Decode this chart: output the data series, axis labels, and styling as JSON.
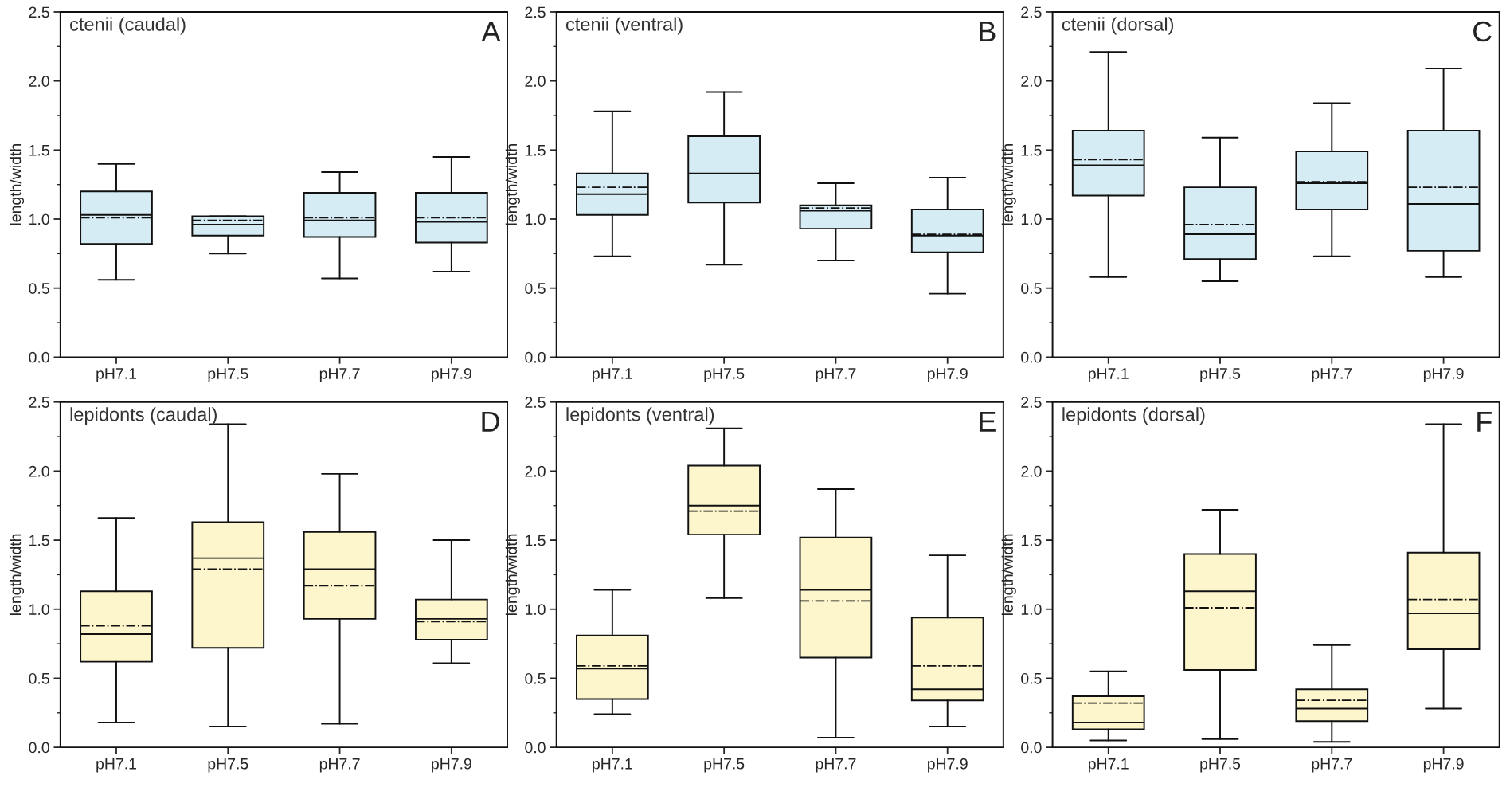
{
  "chart_data": [
    {
      "type": "box",
      "title": "ctenii (caudal)",
      "annotations": [
        "A"
      ],
      "ylabel": "length/width",
      "categories": [
        "pH7.1",
        "pH7.5",
        "pH7.7",
        "pH7.9"
      ],
      "color": "#d6ecf5",
      "ylim": [
        0,
        2.5
      ],
      "yticks": [
        {
          "value": 0,
          "label": "0.0"
        },
        0.5,
        {
          "value": 1,
          "label": "1.0"
        },
        1.5,
        {
          "value": 2,
          "label": "2.0"
        },
        2.5
      ],
      "boxes": [
        {
          "low": 0.56,
          "q1": 0.82,
          "median": 1.03,
          "q3": 1.2,
          "high": 1.4,
          "mean": 1.01
        },
        {
          "low": 0.75,
          "q1": 0.88,
          "median": 0.96,
          "q3": 1.02,
          "high": 1.02,
          "mean": 0.99
        },
        {
          "low": 0.57,
          "q1": 0.87,
          "median": 0.99,
          "q3": 1.19,
          "high": 1.34,
          "mean": 1.01
        },
        {
          "low": 0.62,
          "q1": 0.83,
          "median": 0.98,
          "q3": 1.19,
          "high": 1.45,
          "mean": 1.01
        }
      ]
    },
    {
      "type": "box",
      "title": "ctenii (ventral)",
      "annotations": [
        "B"
      ],
      "ylabel": "length/width",
      "categories": [
        "pH7.1",
        "pH7.5",
        "pH7.7",
        "pH7.9"
      ],
      "color": "#d6ecf5",
      "ylim": [
        0,
        2.5
      ],
      "yticks": [
        {
          "value": 0,
          "label": "0.0"
        },
        0.5,
        {
          "value": 1,
          "label": "1.0"
        },
        1.5,
        {
          "value": 2,
          "label": "2.0"
        },
        2.5
      ],
      "boxes": [
        {
          "low": 0.73,
          "q1": 1.03,
          "median": 1.18,
          "q3": 1.33,
          "high": 1.78,
          "mean": 1.23
        },
        {
          "low": 0.67,
          "q1": 1.12,
          "median": 1.33,
          "q3": 1.6,
          "high": 1.92,
          "mean": 1.33
        },
        {
          "low": 0.7,
          "q1": 0.93,
          "median": 1.06,
          "q3": 1.1,
          "high": 1.26,
          "mean": 1.08
        },
        {
          "low": 0.46,
          "q1": 0.76,
          "median": 0.88,
          "q3": 1.07,
          "high": 1.3,
          "mean": 0.89
        }
      ]
    },
    {
      "type": "box",
      "title": "ctenii (dorsal)",
      "annotations": [
        "C"
      ],
      "ylabel": "length/width",
      "categories": [
        "pH7.1",
        "pH7.5",
        "pH7.7",
        "pH7.9"
      ],
      "color": "#d6ecf5",
      "ylim": [
        0,
        2.5
      ],
      "yticks": [
        {
          "value": 0,
          "label": "0.0"
        },
        0.5,
        {
          "value": 1,
          "label": "1.0"
        },
        1.5,
        {
          "value": 2,
          "label": "2.0"
        },
        2.5
      ],
      "boxes": [
        {
          "low": 0.58,
          "q1": 1.17,
          "median": 1.39,
          "q3": 1.64,
          "high": 2.21,
          "mean": 1.43
        },
        {
          "low": 0.55,
          "q1": 0.71,
          "median": 0.89,
          "q3": 1.23,
          "high": 1.59,
          "mean": 0.96
        },
        {
          "low": 0.73,
          "q1": 1.07,
          "median": 1.26,
          "q3": 1.49,
          "high": 1.84,
          "mean": 1.27
        },
        {
          "low": 0.58,
          "q1": 0.77,
          "median": 1.11,
          "q3": 1.64,
          "high": 2.09,
          "mean": 1.23
        }
      ]
    },
    {
      "type": "box",
      "title": "lepidonts (caudal)",
      "annotations": [
        "D"
      ],
      "ylabel": "length/width",
      "categories": [
        "pH7.1",
        "pH7.5",
        "pH7.7",
        "pH7.9"
      ],
      "color": "#fdf6cc",
      "ylim": [
        0,
        2.5
      ],
      "yticks": [
        {
          "value": 0,
          "label": "0.0"
        },
        0.5,
        {
          "value": 1,
          "label": "1.0"
        },
        1.5,
        {
          "value": 2,
          "label": "2.0"
        },
        2.5
      ],
      "boxes": [
        {
          "low": 0.18,
          "q1": 0.62,
          "median": 0.82,
          "q3": 1.13,
          "high": 1.66,
          "mean": 0.88
        },
        {
          "low": 0.15,
          "q1": 0.72,
          "median": 1.37,
          "q3": 1.63,
          "high": 2.34,
          "mean": 1.29
        },
        {
          "low": 0.17,
          "q1": 0.93,
          "median": 1.29,
          "q3": 1.56,
          "high": 1.98,
          "mean": 1.17
        },
        {
          "low": 0.61,
          "q1": 0.78,
          "median": 0.93,
          "q3": 1.07,
          "high": 1.5,
          "mean": 0.91
        }
      ]
    },
    {
      "type": "box",
      "title": "lepidonts (ventral)",
      "annotations": [
        "E"
      ],
      "ylabel": "length/width",
      "categories": [
        "pH7.1",
        "pH7.5",
        "pH7.7",
        "pH7.9"
      ],
      "color": "#fdf6cc",
      "ylim": [
        0,
        2.5
      ],
      "yticks": [
        {
          "value": 0,
          "label": "0.0"
        },
        0.5,
        {
          "value": 1,
          "label": "1.0"
        },
        1.5,
        {
          "value": 2,
          "label": "2.0"
        },
        2.5
      ],
      "boxes": [
        {
          "low": 0.24,
          "q1": 0.35,
          "median": 0.57,
          "q3": 0.81,
          "high": 1.14,
          "mean": 0.59
        },
        {
          "low": 1.08,
          "q1": 1.54,
          "median": 1.75,
          "q3": 2.04,
          "high": 2.31,
          "mean": 1.71
        },
        {
          "low": 0.07,
          "q1": 0.65,
          "median": 1.14,
          "q3": 1.52,
          "high": 1.87,
          "mean": 1.06
        },
        {
          "low": 0.15,
          "q1": 0.34,
          "median": 0.42,
          "q3": 0.94,
          "high": 1.39,
          "mean": 0.59
        }
      ]
    },
    {
      "type": "box",
      "title": "lepidonts (dorsal)",
      "annotations": [
        "F"
      ],
      "ylabel": "length/width",
      "categories": [
        "pH7.1",
        "pH7.5",
        "pH7.7",
        "pH7.9"
      ],
      "color": "#fdf6cc",
      "ylim": [
        0,
        2.5
      ],
      "yticks": [
        {
          "value": 0,
          "label": "0.0"
        },
        0.5,
        {
          "value": 1,
          "label": "1.0"
        },
        1.5,
        {
          "value": 2,
          "label": "2.0"
        },
        2.5
      ],
      "boxes": [
        {
          "low": 0.05,
          "q1": 0.13,
          "median": 0.18,
          "q3": 0.37,
          "high": 0.55,
          "mean": 0.32
        },
        {
          "low": 0.06,
          "q1": 0.56,
          "median": 1.13,
          "q3": 1.4,
          "high": 1.72,
          "mean": 1.01
        },
        {
          "low": 0.04,
          "q1": 0.19,
          "median": 0.28,
          "q3": 0.42,
          "high": 0.74,
          "mean": 0.34
        },
        {
          "low": 0.28,
          "q1": 0.71,
          "median": 0.97,
          "q3": 1.41,
          "high": 2.34,
          "mean": 1.07
        }
      ]
    }
  ]
}
